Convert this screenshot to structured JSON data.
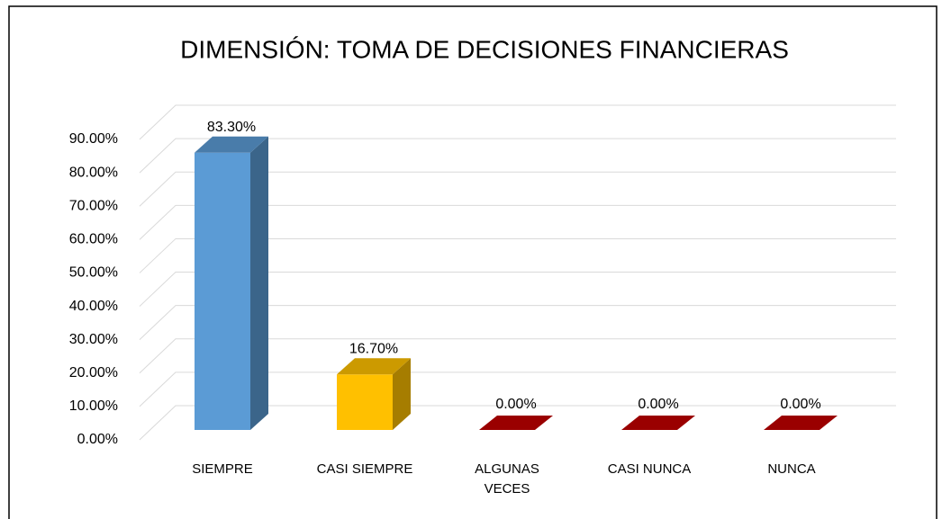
{
  "chart_data": {
    "type": "bar3d",
    "title": "DIMENSIÓN: TOMA DE DECISIONES FINANCIERAS",
    "categories": [
      "SIEMPRE",
      "CASI SIEMPRE",
      "ALGUNAS VECES",
      "CASI NUNCA",
      "NUNCA"
    ],
    "values": [
      83.3,
      16.7,
      0,
      0,
      0
    ],
    "value_labels": [
      "83.30%",
      "16.70%",
      "0.00%",
      "0.00%",
      "0.00%"
    ],
    "colors": [
      "#5b9bd5",
      "#ffc000",
      "#c00000",
      "#c00000",
      "#c00000"
    ],
    "ylim": [
      0,
      90
    ],
    "yticks": [
      {
        "value": 0,
        "label": "0.00%"
      },
      {
        "value": 10,
        "label": "10.00%"
      },
      {
        "value": 20,
        "label": "20.00%"
      },
      {
        "value": 30,
        "label": "30.00%"
      },
      {
        "value": 40,
        "label": "40.00%"
      },
      {
        "value": 50,
        "label": "50.00%"
      },
      {
        "value": 60,
        "label": "60.00%"
      },
      {
        "value": 70,
        "label": "70.00%"
      },
      {
        "value": 80,
        "label": "80.00%"
      },
      {
        "value": 90,
        "label": "90.00%"
      }
    ],
    "grid": true
  }
}
